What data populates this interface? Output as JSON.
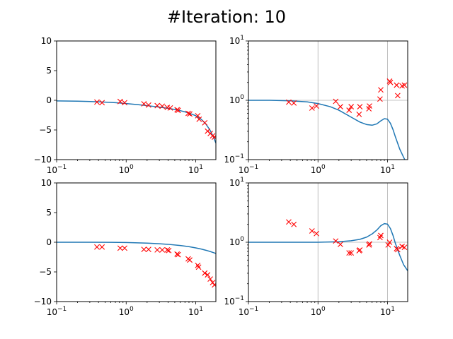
{
  "figure": {
    "title": "#Iteration: 10"
  },
  "colors": {
    "curve": "#1f77b4",
    "marker": "#ff0000",
    "grid": "#b0b0b0"
  },
  "chart_data": [
    {
      "type": "line",
      "x_scale": "log",
      "y_scale": "linear",
      "xlim": [
        0.1,
        19.5
      ],
      "ylim": [
        -10,
        10
      ],
      "grid": false,
      "x_tick_labels": [
        {
          "value": 0.1,
          "base": "10",
          "exp": "−1"
        },
        {
          "value": 1,
          "base": "10",
          "exp": "0"
        },
        {
          "value": 10,
          "base": "10",
          "exp": "1"
        }
      ],
      "y_tick_labels": [
        {
          "value": 10,
          "text": "10"
        },
        {
          "value": 5,
          "text": "5"
        },
        {
          "value": 0,
          "text": "0"
        },
        {
          "value": -5,
          "text": "−5"
        },
        {
          "value": -10,
          "text": "−10"
        }
      ],
      "curve": {
        "x": [
          0.1,
          0.2,
          0.4,
          0.7,
          1.0,
          1.5,
          2.0,
          3.0,
          4.0,
          5.0,
          6.0,
          7.0,
          8.0,
          10.0,
          12.0,
          14.0,
          16.0,
          18.0,
          19.5
        ],
        "y": [
          -0.1,
          -0.15,
          -0.25,
          -0.4,
          -0.55,
          -0.75,
          -0.9,
          -1.15,
          -1.35,
          -1.55,
          -1.75,
          -1.95,
          -2.15,
          -2.6,
          -3.2,
          -4.0,
          -5.0,
          -6.2,
          -7.2
        ]
      },
      "points": {
        "x": [
          0.38,
          0.45,
          0.82,
          0.95,
          1.8,
          2.1,
          2.8,
          3.3,
          3.9,
          4.3,
          5.4,
          5.6,
          7.8,
          8.2,
          10.7,
          11.2,
          13.5,
          14.8,
          16.2,
          17.5,
          18.6
        ],
        "y": [
          -0.3,
          -0.4,
          -0.2,
          -0.4,
          -0.6,
          -0.8,
          -0.9,
          -1.0,
          -1.2,
          -1.3,
          -1.6,
          -1.7,
          -2.2,
          -2.3,
          -2.6,
          -3.2,
          -3.8,
          -5.2,
          -5.6,
          -6.0,
          -6.2
        ]
      }
    },
    {
      "type": "line",
      "x_scale": "log",
      "y_scale": "log",
      "xlim": [
        0.1,
        19.5
      ],
      "ylim": [
        0.1,
        10
      ],
      "grid": true,
      "x_tick_labels": [
        {
          "value": 0.1,
          "base": "10",
          "exp": "−1"
        },
        {
          "value": 1,
          "base": "10",
          "exp": "0"
        },
        {
          "value": 10,
          "base": "10",
          "exp": "1"
        }
      ],
      "y_tick_labels": [
        {
          "value": 10,
          "base": "10",
          "exp": "1"
        },
        {
          "value": 1,
          "base": "10",
          "exp": "0"
        },
        {
          "value": 0.1,
          "base": "10",
          "exp": "−1"
        }
      ],
      "curve": {
        "x": [
          0.1,
          0.2,
          0.4,
          0.7,
          1.0,
          1.5,
          2.0,
          3.0,
          4.0,
          5.0,
          6.0,
          7.0,
          8.0,
          9.0,
          10.0,
          11.0,
          12.0,
          13.0,
          15.0,
          17.0,
          18.5
        ],
        "y": [
          1.0,
          1.0,
          0.98,
          0.94,
          0.88,
          0.78,
          0.68,
          0.52,
          0.43,
          0.39,
          0.38,
          0.4,
          0.45,
          0.49,
          0.48,
          0.41,
          0.32,
          0.24,
          0.15,
          0.11,
          0.09
        ]
      },
      "points": {
        "x": [
          0.38,
          0.45,
          0.82,
          0.95,
          1.8,
          2.1,
          2.8,
          3.0,
          3.9,
          4.0,
          5.4,
          5.5,
          7.8,
          8.0,
          10.7,
          11.0,
          13.5,
          14.0,
          16.2,
          17.5
        ],
        "y": [
          0.93,
          0.9,
          0.74,
          0.8,
          0.96,
          0.78,
          0.68,
          0.78,
          0.58,
          0.78,
          0.72,
          0.8,
          1.05,
          1.5,
          2.1,
          2.0,
          1.8,
          1.2,
          1.75,
          1.8
        ]
      }
    },
    {
      "type": "line",
      "x_scale": "log",
      "y_scale": "linear",
      "xlim": [
        0.1,
        19.5
      ],
      "ylim": [
        -10,
        10
      ],
      "grid": false,
      "x_tick_labels": [
        {
          "value": 0.1,
          "base": "10",
          "exp": "−1"
        },
        {
          "value": 1,
          "base": "10",
          "exp": "0"
        },
        {
          "value": 10,
          "base": "10",
          "exp": "1"
        }
      ],
      "y_tick_labels": [
        {
          "value": 10,
          "text": "10"
        },
        {
          "value": 5,
          "text": "5"
        },
        {
          "value": 0,
          "text": "0"
        },
        {
          "value": -5,
          "text": "−5"
        },
        {
          "value": -10,
          "text": "−10"
        }
      ],
      "curve": {
        "x": [
          0.1,
          0.3,
          0.6,
          1.0,
          2.0,
          3.0,
          4.0,
          6.0,
          8.0,
          10.0,
          12.0,
          14.0,
          16.0,
          18.0,
          19.5
        ],
        "y": [
          0.0,
          0.0,
          -0.02,
          -0.05,
          -0.15,
          -0.25,
          -0.35,
          -0.55,
          -0.75,
          -0.95,
          -1.15,
          -1.35,
          -1.55,
          -1.75,
          -1.9
        ]
      },
      "points": {
        "x": [
          0.38,
          0.45,
          0.82,
          0.95,
          1.8,
          2.1,
          2.8,
          3.3,
          3.9,
          4.1,
          5.4,
          5.6,
          7.8,
          8.2,
          10.7,
          11.0,
          13.5,
          14.8,
          16.2,
          17.5,
          18.6
        ],
        "y": [
          -0.8,
          -0.8,
          -1.0,
          -1.0,
          -1.2,
          -1.2,
          -1.3,
          -1.3,
          -1.3,
          -1.4,
          -2.0,
          -2.1,
          -2.8,
          -3.0,
          -3.9,
          -4.2,
          -5.2,
          -5.5,
          -6.2,
          -6.8,
          -7.2
        ]
      }
    },
    {
      "type": "line",
      "x_scale": "log",
      "y_scale": "log",
      "xlim": [
        0.1,
        19.5
      ],
      "ylim": [
        0.1,
        10
      ],
      "grid": true,
      "x_tick_labels": [
        {
          "value": 0.1,
          "base": "10",
          "exp": "−1"
        },
        {
          "value": 1,
          "base": "10",
          "exp": "0"
        },
        {
          "value": 10,
          "base": "10",
          "exp": "1"
        }
      ],
      "y_tick_labels": [
        {
          "value": 10,
          "base": "10",
          "exp": "1"
        },
        {
          "value": 1,
          "base": "10",
          "exp": "0"
        },
        {
          "value": 0.1,
          "base": "10",
          "exp": "−1"
        }
      ],
      "curve": {
        "x": [
          0.1,
          0.3,
          0.6,
          1.0,
          2.0,
          3.0,
          4.0,
          5.0,
          6.0,
          7.0,
          8.0,
          9.0,
          10.0,
          11.0,
          12.0,
          13.0,
          15.0,
          17.0,
          19.5
        ],
        "y": [
          1.0,
          1.0,
          1.0,
          1.0,
          1.02,
          1.06,
          1.12,
          1.22,
          1.38,
          1.6,
          1.9,
          2.06,
          2.02,
          1.7,
          1.3,
          0.95,
          0.6,
          0.42,
          0.33
        ]
      },
      "points": {
        "x": [
          0.38,
          0.45,
          0.82,
          0.95,
          1.8,
          2.1,
          2.8,
          3.0,
          3.9,
          4.0,
          5.4,
          5.5,
          7.8,
          8.0,
          10.2,
          10.7,
          13.5,
          14.0,
          16.2,
          17.5
        ],
        "y": [
          2.2,
          2.0,
          1.55,
          1.4,
          1.05,
          0.92,
          0.66,
          0.66,
          0.72,
          0.74,
          0.9,
          0.94,
          1.2,
          1.3,
          0.9,
          1.0,
          0.78,
          0.75,
          0.85,
          0.82
        ]
      }
    }
  ]
}
